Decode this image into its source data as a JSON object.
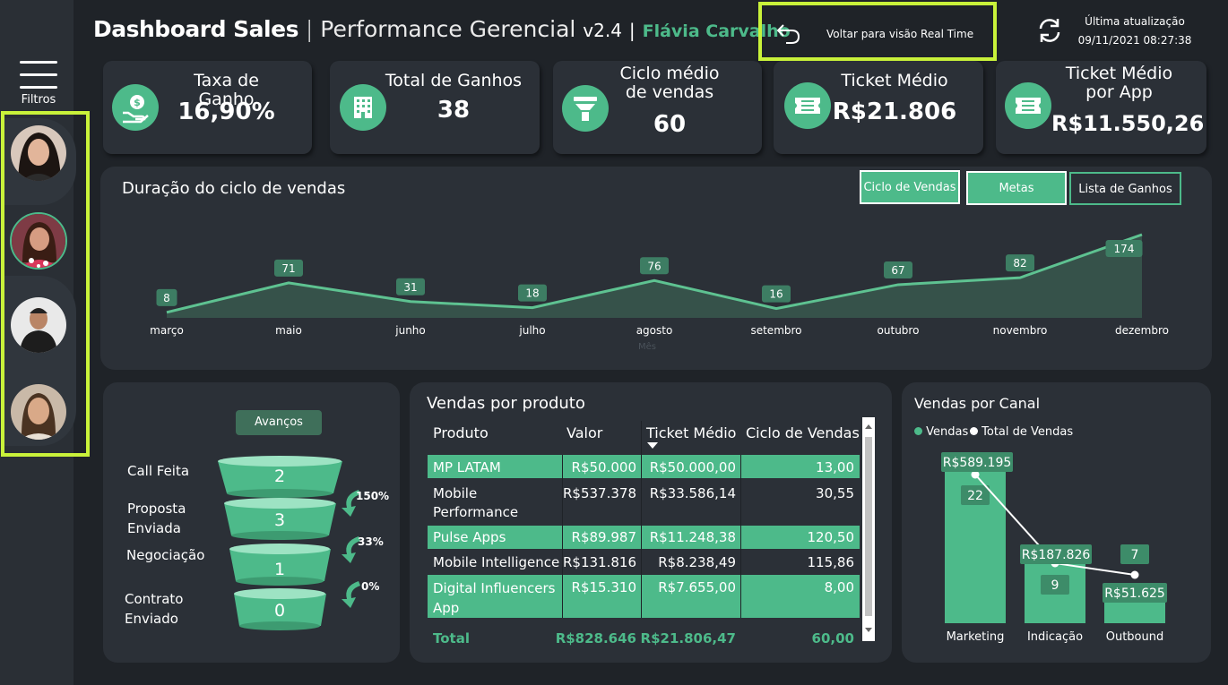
{
  "header": {
    "title_bold": "Dashboard Sales",
    "sep1": "|",
    "title_light": "Performance Gerencial",
    "version": "v2.4",
    "sep2": "|",
    "user": "Flávia Carvalho",
    "back_label": "Voltar para visão Real Time",
    "update_label": "Última atualização",
    "update_value": "09/11/2021 08:27:38"
  },
  "sidebar": {
    "filters_label": "Filtros"
  },
  "kpis": [
    {
      "title": "Taxa de Ganho",
      "value": "16,90%",
      "icon": "money-hand-icon"
    },
    {
      "title": "Total de Ganhos",
      "value": "38",
      "icon": "building-icon"
    },
    {
      "title": "Ciclo médio de vendas",
      "value": "60",
      "icon": "funnel-icon"
    },
    {
      "title": "Ticket Médio",
      "value": "R$21.806",
      "icon": "ticket-icon"
    },
    {
      "title": "Ticket Médio por App",
      "value": "R$11.550,26",
      "icon": "ticket-icon"
    }
  ],
  "cycle": {
    "title": "Duração do ciclo de vendas",
    "tabs": [
      "Ciclo de Vendas",
      "Metas",
      "Lista de Ganhos"
    ],
    "axis_title": "Mês"
  },
  "chart_data": [
    {
      "type": "area",
      "title": "Duração do ciclo de vendas",
      "xlabel": "Mês",
      "ylabel": "",
      "categories": [
        "março",
        "maio",
        "junho",
        "julho",
        "agosto",
        "setembro",
        "outubro",
        "novembro",
        "dezembro"
      ],
      "values": [
        8,
        71,
        31,
        18,
        76,
        16,
        67,
        82,
        174
      ],
      "grid": false,
      "color": "#5ec291"
    },
    {
      "type": "bar",
      "title": "Vendas por Canal",
      "categories": [
        "Marketing",
        "Indicação",
        "Outbound"
      ],
      "series": [
        {
          "name": "Vendas",
          "values": [
            22,
            9,
            7
          ],
          "color": "#4dba8a"
        },
        {
          "name": "Total de Vendas",
          "values": [
            589195,
            187826,
            51625
          ],
          "labels": [
            "R$589.195",
            "R$187.826",
            "R$51.625"
          ],
          "color": "#ffffff"
        }
      ],
      "legend": "top-left"
    },
    {
      "type": "bar",
      "title": "Avanços",
      "categories": [
        "Call Feita",
        "Proposta Enviada",
        "Negociação",
        "Contrato Enviado"
      ],
      "values": [
        2,
        3,
        1,
        0
      ],
      "conversion": [
        "150%",
        "33%",
        "0%"
      ]
    }
  ],
  "funnel": {
    "button": "Avanços",
    "stages": [
      {
        "label": "Call Feita",
        "value": "2"
      },
      {
        "label": "Proposta Enviada",
        "value": "3"
      },
      {
        "label": "Negociação",
        "value": "1"
      },
      {
        "label": "Contrato Enviado",
        "value": "0"
      }
    ],
    "conversions": [
      "150%",
      "33%",
      "0%"
    ]
  },
  "products": {
    "title": "Vendas por produto",
    "columns": [
      "Produto",
      "Valor",
      "Ticket Médio",
      "Ciclo de Vendas"
    ],
    "rows": [
      {
        "produto": "MP LATAM",
        "valor": "R$50.000",
        "ticket": "R$50.000,00",
        "ciclo": "13,00"
      },
      {
        "produto": "Mobile Performance",
        "valor": "R$537.378",
        "ticket": "R$33.586,14",
        "ciclo": "30,55"
      },
      {
        "produto": "Pulse Apps",
        "valor": "R$89.987",
        "ticket": "R$11.248,38",
        "ciclo": "120,50"
      },
      {
        "produto": "Mobile Intelligence",
        "valor": "R$131.816",
        "ticket": "R$8.238,49",
        "ciclo": "115,86"
      },
      {
        "produto": "Digital Influencers App",
        "valor": "R$15.310",
        "ticket": "R$7.655,00",
        "ciclo": "8,00"
      }
    ],
    "total": {
      "produto": "Total",
      "valor": "R$828.646",
      "ticket": "R$21.806,47",
      "ciclo": "60,00"
    }
  },
  "canal": {
    "title": "Vendas por Canal",
    "legend": [
      "Vendas",
      "Total de Vendas"
    ],
    "categories": [
      "Marketing",
      "Indicação",
      "Outbound"
    ],
    "counts": [
      "22",
      "9",
      "7"
    ],
    "totals": [
      "R$589.195",
      "R$187.826",
      "R$51.625"
    ]
  },
  "colors": {
    "accent": "#4dba8a",
    "highlight": "#c9f23a",
    "panel": "#2b3037",
    "bg": "#1f2328"
  }
}
